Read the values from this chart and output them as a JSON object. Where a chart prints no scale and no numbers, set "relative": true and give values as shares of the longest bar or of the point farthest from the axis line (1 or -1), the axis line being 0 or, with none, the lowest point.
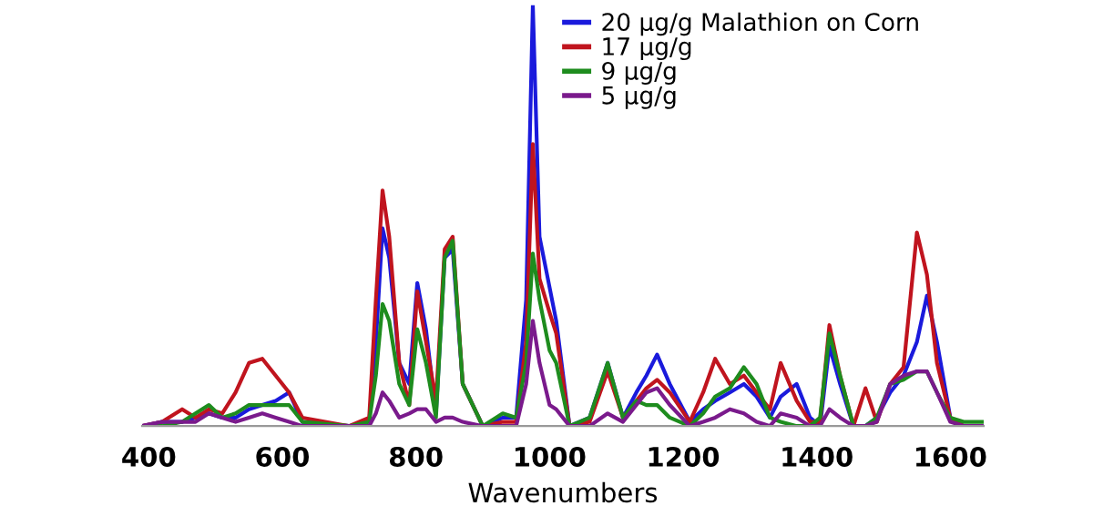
{
  "chart_data": {
    "type": "line",
    "relative": true,
    "xlabel": "Wavenumbers",
    "x": [
      390,
      420,
      450,
      470,
      490,
      510,
      530,
      550,
      570,
      590,
      610,
      630,
      700,
      730,
      740,
      750,
      760,
      775,
      790,
      802,
      815,
      830,
      843,
      855,
      870,
      900,
      930,
      950,
      965,
      975,
      985,
      1000,
      1010,
      1030,
      1060,
      1087,
      1110,
      1130,
      1145,
      1161,
      1180,
      1210,
      1230,
      1248,
      1270,
      1291,
      1310,
      1330,
      1346,
      1370,
      1390,
      1405,
      1419,
      1435,
      1455,
      1473,
      1490,
      1510,
      1530,
      1550,
      1565,
      1580,
      1600,
      1620,
      1650
    ],
    "xlim": [
      390,
      1650
    ],
    "xticks": [
      400,
      600,
      800,
      1000,
      1200,
      1400,
      1600
    ],
    "grid": false,
    "legend": "top",
    "marker": "none",
    "line_style": "solid",
    "series": [
      {
        "name": "20 µg/g Malathion on Corn",
        "color": "#1a1adc",
        "values": [
          0,
          0.01,
          0.01,
          0.02,
          0.03,
          0.02,
          0.02,
          0.04,
          0.05,
          0.06,
          0.08,
          0.01,
          0,
          0.01,
          0.2,
          0.47,
          0.4,
          0.15,
          0.1,
          0.34,
          0.23,
          0.03,
          0.4,
          0.42,
          0.1,
          0,
          0.02,
          0.02,
          0.3,
          1.0,
          0.45,
          0.33,
          0.25,
          0,
          0.02,
          0.15,
          0.02,
          0.08,
          0.12,
          0.17,
          0.1,
          0.01,
          0.04,
          0.06,
          0.08,
          0.1,
          0.07,
          0.02,
          0.07,
          0.1,
          0.02,
          0,
          0.19,
          0.1,
          0,
          0,
          0.02,
          0.08,
          0.12,
          0.2,
          0.31,
          0.2,
          0.02,
          0,
          0
        ]
      },
      {
        "name": "17 µg/g",
        "color": "#c0141e",
        "values": [
          0,
          0.01,
          0.04,
          0.02,
          0.04,
          0.03,
          0.08,
          0.15,
          0.16,
          0.12,
          0.08,
          0.02,
          0,
          0.02,
          0.3,
          0.56,
          0.45,
          0.15,
          0.05,
          0.32,
          0.2,
          0.06,
          0.42,
          0.45,
          0.1,
          0,
          0.01,
          0.01,
          0.2,
          0.67,
          0.35,
          0.27,
          0.22,
          0,
          0.01,
          0.13,
          0.02,
          0.06,
          0.09,
          0.11,
          0.08,
          0.01,
          0.08,
          0.16,
          0.1,
          0.12,
          0.08,
          0.04,
          0.15,
          0.06,
          0.01,
          0.01,
          0.24,
          0.12,
          0,
          0.09,
          0.01,
          0.1,
          0.14,
          0.46,
          0.36,
          0.15,
          0.02,
          0,
          0
        ]
      },
      {
        "name": "9 µg/g",
        "color": "#1e8c1e",
        "values": [
          0,
          0,
          0.01,
          0.03,
          0.05,
          0.02,
          0.03,
          0.05,
          0.05,
          0.05,
          0.05,
          0.01,
          0,
          0.01,
          0.12,
          0.29,
          0.25,
          0.1,
          0.05,
          0.23,
          0.15,
          0.02,
          0.4,
          0.44,
          0.1,
          0,
          0.03,
          0.02,
          0.15,
          0.41,
          0.3,
          0.18,
          0.15,
          0,
          0.02,
          0.15,
          0.02,
          0.06,
          0.05,
          0.05,
          0.02,
          0,
          0.03,
          0.07,
          0.09,
          0.14,
          0.1,
          0.02,
          0.01,
          0,
          0,
          0.02,
          0.22,
          0.12,
          0,
          0,
          0.02,
          0.1,
          0.11,
          0.13,
          0.13,
          0.08,
          0.02,
          0.01,
          0.01
        ]
      },
      {
        "name": "5 µg/g",
        "color": "#7a1a8c",
        "values": [
          0,
          0.01,
          0.01,
          0.01,
          0.03,
          0.02,
          0.01,
          0.02,
          0.03,
          0.02,
          0.01,
          0,
          0,
          0,
          0.03,
          0.08,
          0.06,
          0.02,
          0.03,
          0.04,
          0.04,
          0.01,
          0.02,
          0.02,
          0.01,
          0,
          0,
          0,
          0.1,
          0.25,
          0.15,
          0.05,
          0.04,
          0,
          0,
          0.03,
          0.01,
          0.05,
          0.08,
          0.09,
          0.05,
          0,
          0.01,
          0.02,
          0.04,
          0.03,
          0.01,
          0,
          0.03,
          0.02,
          0,
          0,
          0.04,
          0.02,
          0,
          0,
          0.01,
          0.1,
          0.12,
          0.13,
          0.13,
          0.08,
          0.01,
          0,
          0
        ]
      }
    ]
  }
}
